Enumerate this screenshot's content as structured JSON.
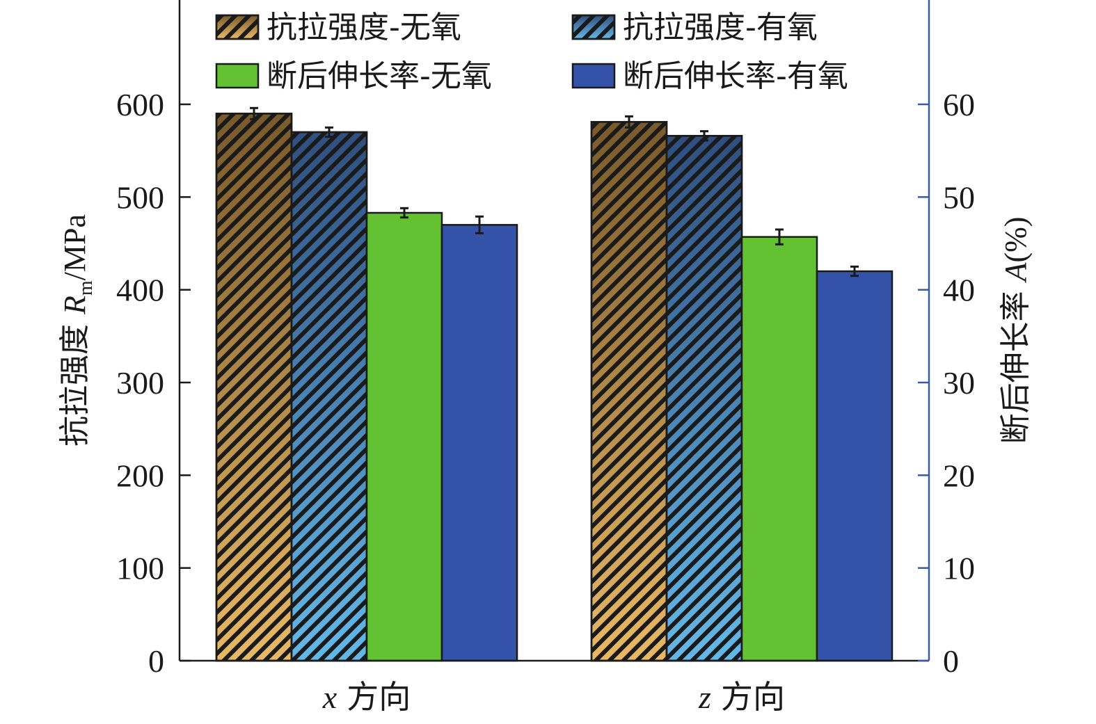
{
  "colors": {
    "axis": "#1a1a1a",
    "right_axis": "#3a5aa8",
    "hatch_stroke": "#1a1a1a"
  },
  "chart_data": {
    "type": "bar",
    "categories": [
      "x 方向",
      "z 方向"
    ],
    "category_labels": [
      {
        "var": "x",
        "text": "方向"
      },
      {
        "var": "z",
        "text": "方向"
      }
    ],
    "series": [
      {
        "name": "抗拉强度-无氧",
        "axis": "left",
        "values": [
          590,
          581
        ],
        "errors": [
          6,
          6
        ],
        "fill": "hatch",
        "gradient": [
          "#7a5a2a",
          "#e8b865"
        ]
      },
      {
        "name": "抗拉强度-有氧",
        "axis": "left",
        "values": [
          570,
          566
        ],
        "errors": [
          5,
          5
        ],
        "fill": "hatch",
        "gradient": [
          "#2f4f80",
          "#63b8e8"
        ]
      },
      {
        "name": "断后伸长率-无氧",
        "axis": "right",
        "values": [
          48.3,
          45.7
        ],
        "errors": [
          0.5,
          0.8
        ],
        "fill": "solid",
        "color": "#63c132"
      },
      {
        "name": "断后伸长率-有氧",
        "axis": "right",
        "values": [
          47.0,
          42.0
        ],
        "errors": [
          0.9,
          0.5
        ],
        "fill": "solid",
        "color": "#3452a8"
      }
    ],
    "left_axis": {
      "label_prefix": "抗拉强度 ",
      "label_var": "R",
      "label_sub": "m",
      "label_suffix": "/MPa",
      "ylim": [
        0,
        600
      ],
      "ticks": [
        "0",
        "100",
        "200",
        "300",
        "400",
        "500",
        "600"
      ]
    },
    "right_axis": {
      "label_prefix": "断后伸长率 ",
      "label_var": "A",
      "label_suffix": "(%)",
      "ylim": [
        0,
        60
      ],
      "ticks": [
        "0",
        "10",
        "20",
        "30",
        "40",
        "50",
        "60"
      ]
    },
    "legend_placement": "top",
    "grid": false
  }
}
